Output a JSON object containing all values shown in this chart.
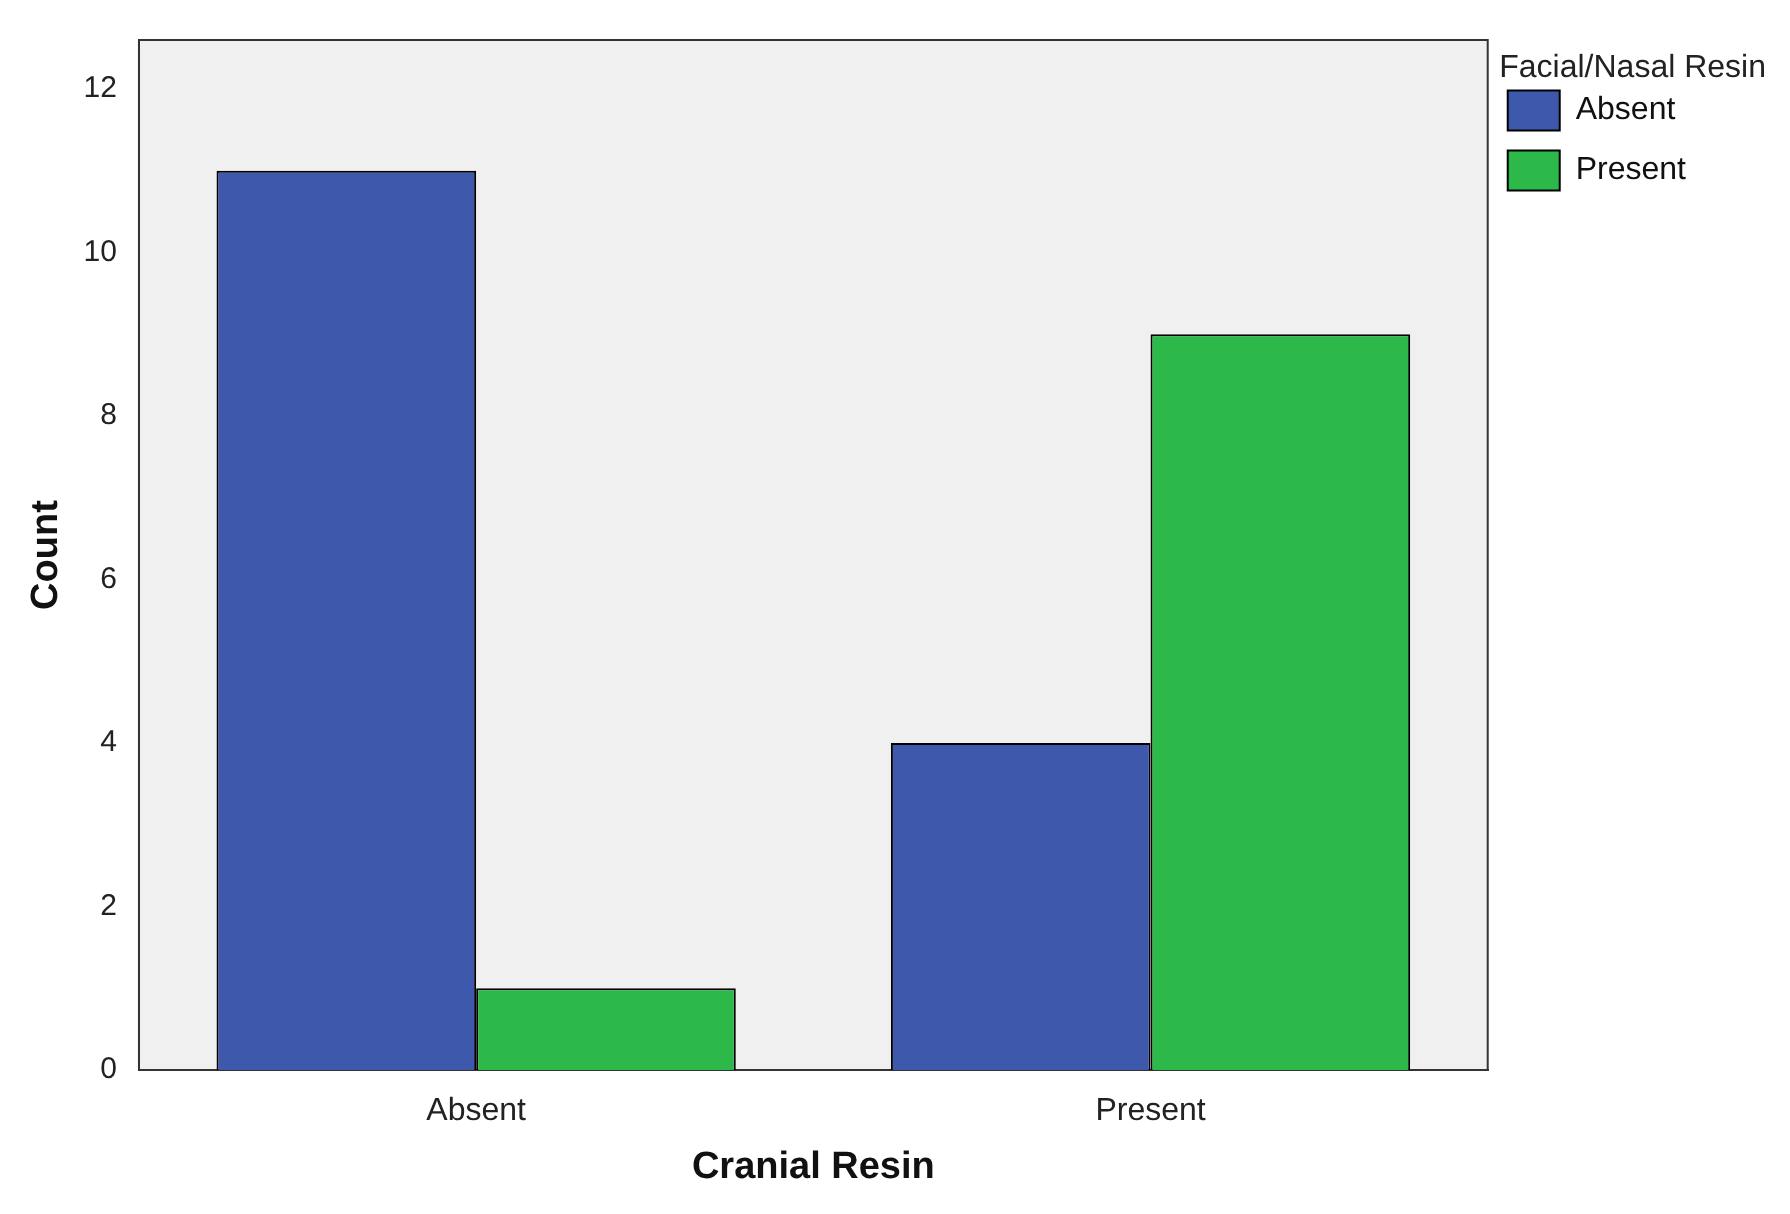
{
  "chart_data": {
    "type": "bar",
    "xlabel": "Cranial Resin",
    "ylabel": "Count",
    "legend_title": "Facial/Nasal Resin",
    "categories": [
      "Absent",
      "Present"
    ],
    "series": [
      {
        "name": "Absent",
        "color": "#3e58ac",
        "values": [
          11,
          4
        ]
      },
      {
        "name": "Present",
        "color": "#2db84a",
        "values": [
          1,
          9
        ]
      }
    ],
    "ylim": [
      0,
      12.6
    ],
    "yticks": [
      0,
      2,
      4,
      6,
      8,
      10,
      12
    ],
    "grid": false,
    "legend": "top right"
  }
}
